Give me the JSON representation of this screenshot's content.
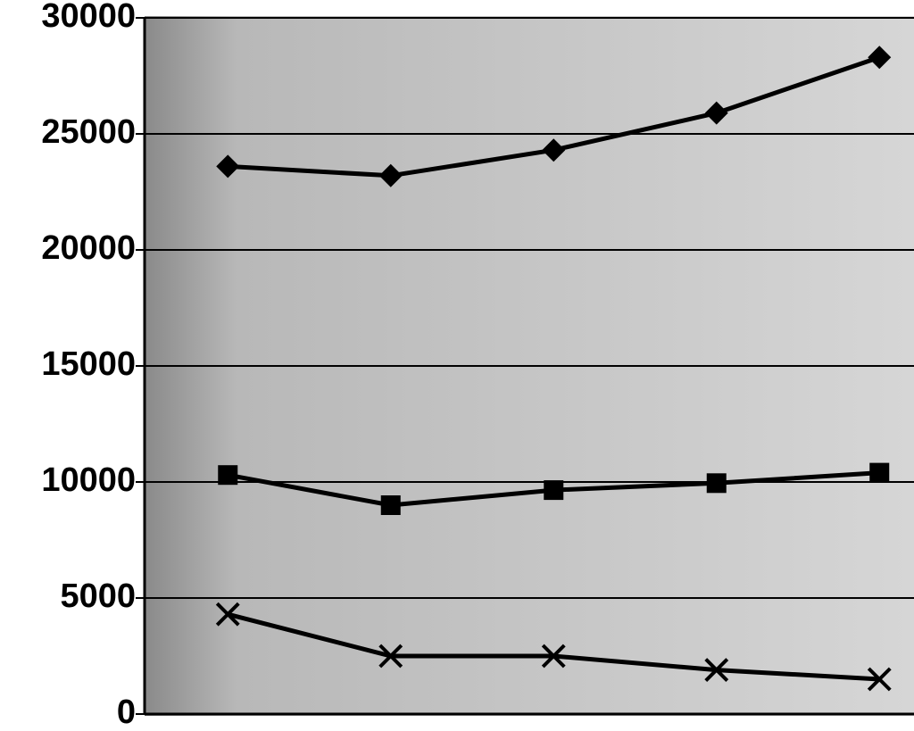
{
  "chart_data": {
    "type": "line",
    "categories": [
      null,
      null,
      null,
      null,
      null
    ],
    "series": [
      {
        "color": "#000000",
        "marker": "diamond",
        "values": [
          23600,
          23200,
          24300,
          25900,
          28300
        ]
      },
      {
        "color": "#000000",
        "marker": "square",
        "values": [
          10300,
          9000,
          9650,
          9950,
          10400
        ]
      },
      {
        "color": "#000000",
        "marker": "x",
        "values": [
          4300,
          2500,
          2500,
          1900,
          1500
        ]
      }
    ],
    "ylim": [
      0,
      30000
    ],
    "yticks": [
      0,
      5000,
      10000,
      15000,
      20000,
      25000,
      30000
    ],
    "grid": true
  }
}
